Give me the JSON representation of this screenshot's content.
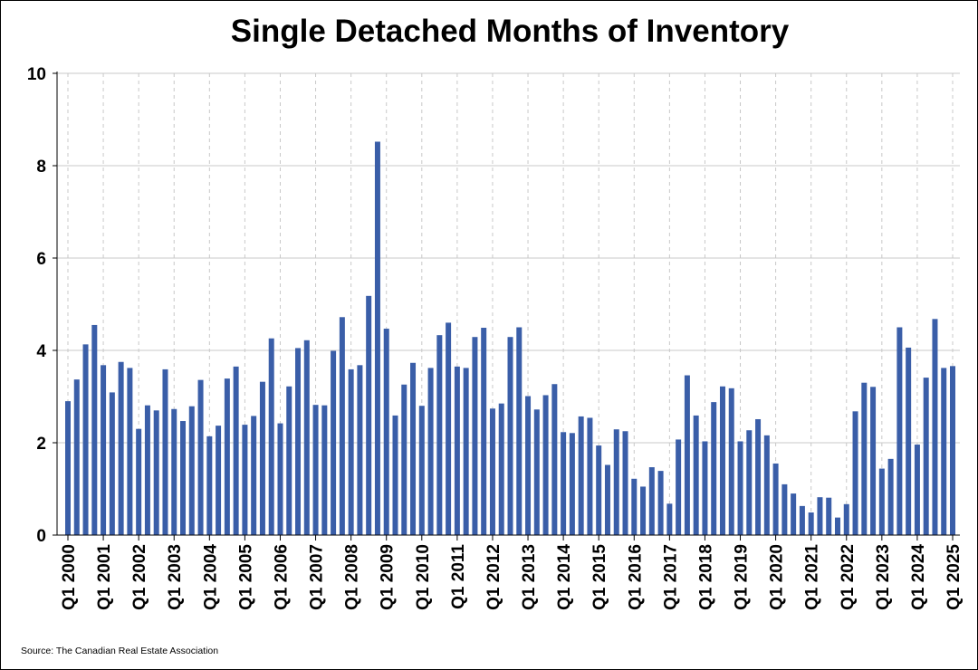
{
  "chart_data": {
    "type": "bar",
    "title": "Single Detached Months of Inventory",
    "xlabel": "",
    "ylabel": "",
    "ylim": [
      0,
      10
    ],
    "yticks": [
      0,
      2,
      4,
      6,
      8,
      10
    ],
    "grid": true,
    "legend": "none",
    "bar_color": "#3a5ea8",
    "categories": [
      "Q1 2000",
      "Q2 2000",
      "Q3 2000",
      "Q4 2000",
      "Q1 2001",
      "Q2 2001",
      "Q3 2001",
      "Q4 2001",
      "Q1 2002",
      "Q2 2002",
      "Q3 2002",
      "Q4 2002",
      "Q1 2003",
      "Q2 2003",
      "Q3 2003",
      "Q4 2003",
      "Q1 2004",
      "Q2 2004",
      "Q3 2004",
      "Q4 2004",
      "Q1 2005",
      "Q2 2005",
      "Q3 2005",
      "Q4 2005",
      "Q1 2006",
      "Q2 2006",
      "Q3 2006",
      "Q4 2006",
      "Q1 2007",
      "Q2 2007",
      "Q3 2007",
      "Q4 2007",
      "Q1 2008",
      "Q2 2008",
      "Q3 2008",
      "Q4 2008",
      "Q1 2009",
      "Q2 2009",
      "Q3 2009",
      "Q4 2009",
      "Q1 2010",
      "Q2 2010",
      "Q3 2010",
      "Q4 2010",
      "Q1 2011",
      "Q2 2011",
      "Q3 2011",
      "Q4 2011",
      "Q1 2012",
      "Q2 2012",
      "Q3 2012",
      "Q4 2012",
      "Q1 2013",
      "Q2 2013",
      "Q3 2013",
      "Q4 2013",
      "Q1 2014",
      "Q2 2014",
      "Q3 2014",
      "Q4 2014",
      "Q1 2015",
      "Q2 2015",
      "Q3 2015",
      "Q4 2015",
      "Q1 2016",
      "Q2 2016",
      "Q3 2016",
      "Q4 2016",
      "Q1 2017",
      "Q2 2017",
      "Q3 2017",
      "Q4 2017",
      "Q1 2018",
      "Q2 2018",
      "Q3 2018",
      "Q4 2018",
      "Q1 2019",
      "Q2 2019",
      "Q3 2019",
      "Q4 2019",
      "Q1 2020",
      "Q2 2020",
      "Q3 2020",
      "Q4 2020",
      "Q1 2021",
      "Q2 2021",
      "Q3 2021",
      "Q4 2021",
      "Q1 2022",
      "Q2 2022",
      "Q3 2022",
      "Q4 2022",
      "Q1 2023",
      "Q2 2023",
      "Q3 2023",
      "Q4 2023",
      "Q1 2024",
      "Q2 2024",
      "Q3 2024",
      "Q4 2024",
      "Q1 2025"
    ],
    "tick_labels": [
      "Q1 2000",
      "Q1 2001",
      "Q1 2002",
      "Q1 2003",
      "Q1 2004",
      "Q1 2005",
      "Q1 2006",
      "Q1 2007",
      "Q1 2008",
      "Q1 2009",
      "Q1 2010",
      "Q1 2011",
      "Q1 2012",
      "Q1 2013",
      "Q1 2014",
      "Q1 2015",
      "Q1 2016",
      "Q1 2017",
      "Q1 2018",
      "Q1 2019",
      "Q1 2020",
      "Q1 2021",
      "Q1 2022",
      "Q1 2023",
      "Q1 2024",
      "Q1 2025"
    ],
    "values": [
      2.9,
      3.37,
      4.13,
      4.55,
      3.68,
      3.09,
      3.75,
      3.62,
      2.3,
      2.81,
      2.7,
      3.59,
      2.73,
      2.47,
      2.79,
      3.36,
      2.14,
      2.37,
      3.39,
      3.65,
      2.39,
      2.58,
      3.32,
      4.26,
      2.42,
      3.22,
      4.05,
      4.22,
      2.82,
      2.81,
      3.99,
      4.72,
      3.59,
      3.68,
      5.18,
      8.52,
      4.47,
      2.59,
      3.26,
      3.73,
      2.8,
      3.62,
      4.33,
      4.6,
      3.65,
      3.62,
      4.29,
      4.49,
      2.74,
      2.85,
      4.29,
      4.5,
      3.01,
      2.72,
      3.03,
      3.27,
      2.23,
      2.21,
      2.57,
      2.54,
      1.94,
      1.52,
      2.29,
      2.25,
      1.22,
      1.05,
      1.47,
      1.39,
      0.68,
      2.07,
      3.46,
      2.59,
      2.03,
      2.88,
      3.22,
      3.18,
      2.03,
      2.27,
      2.51,
      2.16,
      1.55,
      1.1,
      0.9,
      0.63,
      0.49,
      0.82,
      0.81,
      0.38,
      0.67,
      2.68,
      3.3,
      3.21,
      1.44,
      1.65,
      4.5,
      4.06,
      1.96,
      3.41,
      4.68,
      3.62,
      3.66
    ]
  },
  "source_note": "Source: The Canadian Real Estate Association"
}
